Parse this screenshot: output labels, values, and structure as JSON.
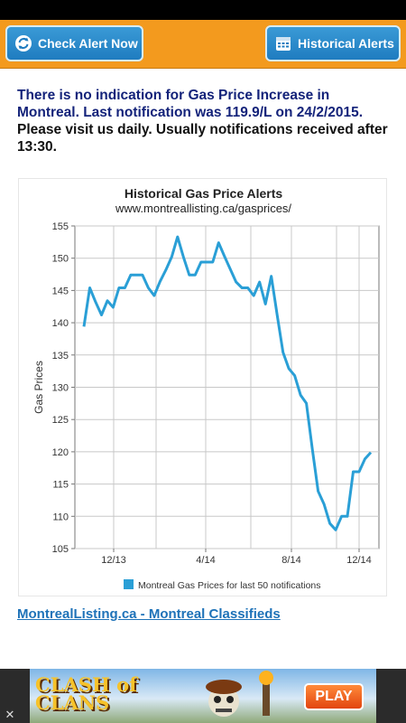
{
  "toolbar": {
    "check_label": "Check Alert Now",
    "historical_label": "Historical Alerts",
    "check_icon": "refresh-icon",
    "historical_icon": "calendar-icon"
  },
  "notice": {
    "line_blue": "There is no indication for Gas Price Increase in Montreal. Last notification was 119.9/L on 24/2/2015.",
    "line_black": "Please visit us daily. Usually notifications received after 13:30."
  },
  "chart_data": {
    "type": "line",
    "title": "Historical Gas Price Alerts",
    "subtitle": "www.montreallisting.ca/gasprices/",
    "ylabel": "Gas Prices",
    "ylim": [
      105,
      155
    ],
    "yticks": [
      105,
      110,
      115,
      120,
      125,
      130,
      135,
      140,
      145,
      150,
      155
    ],
    "xtick_labels": [
      "12/13",
      "4/14",
      "8/14",
      "12/14"
    ],
    "grid": true,
    "legend": "bottom",
    "series": [
      {
        "name": "Montreal Gas Prices for last 50 notifications",
        "color": "#2a9fd6",
        "values": [
          139.4,
          145.4,
          143.2,
          141.2,
          143.4,
          142.4,
          145.4,
          145.4,
          147.4,
          147.4,
          147.4,
          145.4,
          144.2,
          146.4,
          148.2,
          150.2,
          153.3,
          150.2,
          147.4,
          147.4,
          149.4,
          149.4,
          149.4,
          152.4,
          150.3,
          148.3,
          146.3,
          145.4,
          145.4,
          144.2,
          146.3,
          142.9,
          147.2,
          141.2,
          135.4,
          132.9,
          131.8,
          128.8,
          127.5,
          120.5,
          113.9,
          111.9,
          108.9,
          107.9,
          110.0,
          110.0,
          116.9,
          116.9,
          118.9,
          119.9
        ]
      }
    ]
  },
  "link": {
    "label": "MontrealListing.ca - Montreal Classifieds"
  },
  "ad": {
    "brand": "CLASH of CLANS",
    "cta": "PLAY",
    "close": "✕"
  }
}
